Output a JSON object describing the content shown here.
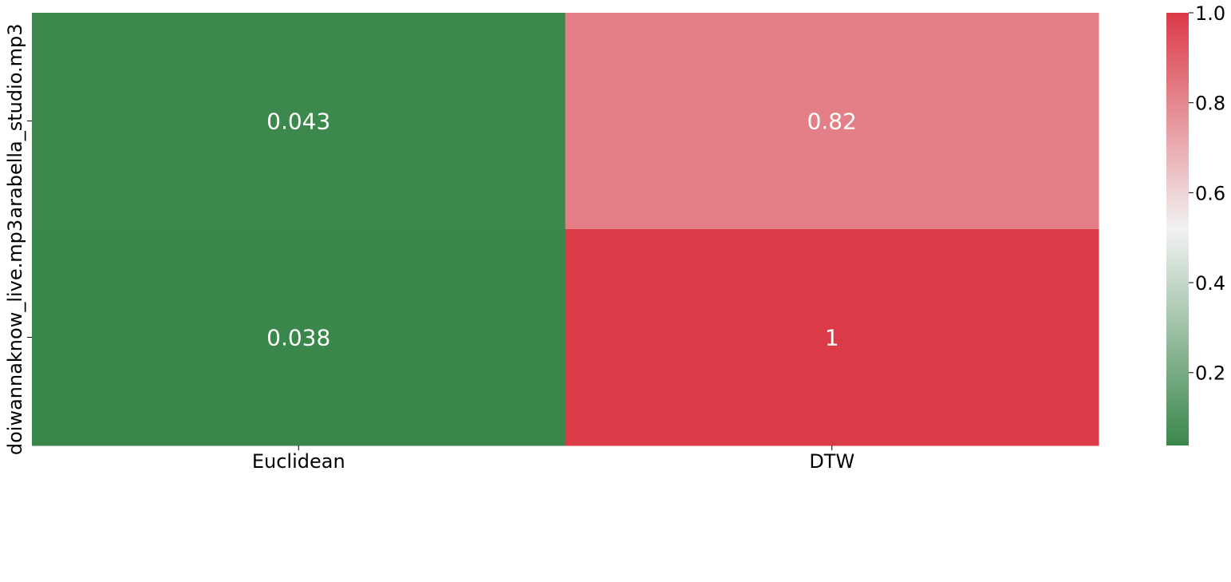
{
  "chart_data": {
    "type": "heatmap",
    "x_categories": [
      "Euclidean",
      "DTW"
    ],
    "y_categories": [
      "arabella_studio.mp3",
      "doiwannaknow_live.mp3"
    ],
    "values": [
      [
        0.043,
        0.82
      ],
      [
        0.038,
        1
      ]
    ],
    "cell_labels": [
      [
        "0.043",
        "0.82"
      ],
      [
        "0.038",
        "1"
      ]
    ],
    "colorbar": {
      "vmin": 0.038,
      "vmax": 1.0,
      "ticks": [
        0.2,
        0.4,
        0.6,
        0.8,
        1.0
      ],
      "tick_labels": [
        "0.2",
        "0.4",
        "0.6",
        "0.8",
        "1.0"
      ]
    },
    "colormap": {
      "low": "#3a874b",
      "mid": "#f2f2f2",
      "high": "#db3a47"
    }
  }
}
